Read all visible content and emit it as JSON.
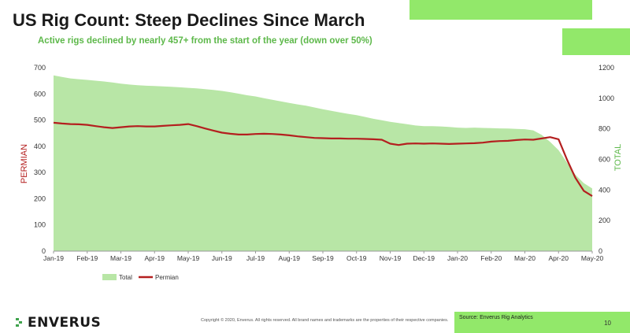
{
  "title": "US Rig Count: Steep Declines Since March",
  "subtitle": "Active rigs declined by nearly 457+ from the start of the year (down over 50%)",
  "colors": {
    "total_fill": "#b8e6a6",
    "permian_line": "#b41f1f",
    "accent": "#92e86a",
    "subtitle": "#5db84a"
  },
  "chart_data": {
    "type": "area",
    "x_ticks": [
      "Jan-19",
      "Feb-19",
      "Mar-19",
      "Apr-19",
      "May-19",
      "Jun-19",
      "Jul-19",
      "Aug-19",
      "Sep-19",
      "Oct-19",
      "Nov-19",
      "Dec-19",
      "Jan-20",
      "Feb-20",
      "Mar-20",
      "Apr-20",
      "May-20"
    ],
    "left_axis": {
      "label": "PERMIAN",
      "min": 0,
      "max": 700,
      "ticks": [
        0,
        100,
        200,
        300,
        400,
        500,
        600,
        700
      ]
    },
    "right_axis": {
      "label": "TOTAL",
      "min": 0,
      "max": 1200,
      "ticks": [
        0,
        200,
        400,
        600,
        800,
        1000,
        1200
      ]
    },
    "x": [
      0,
      0.25,
      0.5,
      0.75,
      1,
      1.25,
      1.5,
      1.75,
      2,
      2.25,
      2.5,
      2.75,
      3,
      3.25,
      3.5,
      3.75,
      4,
      4.25,
      4.5,
      4.75,
      5,
      5.25,
      5.5,
      5.75,
      6,
      6.25,
      6.5,
      6.75,
      7,
      7.25,
      7.5,
      7.75,
      8,
      8.25,
      8.5,
      8.75,
      9,
      9.25,
      9.5,
      9.75,
      10,
      10.25,
      10.5,
      10.75,
      11,
      11.25,
      11.5,
      11.75,
      12,
      12.25,
      12.5,
      12.75,
      13,
      13.25,
      13.5,
      13.75,
      14,
      14.25,
      14.5,
      14.75,
      15,
      15.25,
      15.5,
      15.75,
      16
    ],
    "series": [
      {
        "name": "Total",
        "axis": "right",
        "type": "area",
        "values": [
          1150,
          1140,
          1130,
          1125,
          1120,
          1115,
          1110,
          1103,
          1096,
          1090,
          1085,
          1082,
          1080,
          1078,
          1075,
          1072,
          1068,
          1065,
          1060,
          1055,
          1048,
          1040,
          1030,
          1020,
          1012,
          1000,
          990,
          980,
          970,
          960,
          952,
          940,
          928,
          918,
          908,
          898,
          890,
          878,
          866,
          856,
          846,
          838,
          830,
          822,
          818,
          818,
          816,
          812,
          808,
          806,
          808,
          806,
          805,
          803,
          802,
          800,
          798,
          790,
          760,
          715,
          660,
          580,
          500,
          445,
          410
        ]
      },
      {
        "name": "Permian",
        "axis": "left",
        "type": "line",
        "values": [
          490,
          487,
          485,
          484,
          482,
          477,
          473,
          470,
          473,
          476,
          477,
          476,
          476,
          478,
          480,
          482,
          485,
          477,
          468,
          460,
          452,
          448,
          445,
          445,
          447,
          448,
          447,
          445,
          442,
          438,
          435,
          432,
          431,
          430,
          430,
          429,
          429,
          428,
          427,
          425,
          410,
          405,
          410,
          411,
          410,
          411,
          410,
          409,
          410,
          411,
          412,
          414,
          418,
          420,
          421,
          424,
          426,
          425,
          430,
          435,
          427,
          350,
          280,
          230,
          210
        ]
      }
    ],
    "legend": [
      "Total",
      "Permian"
    ],
    "legend_position": "bottom-left"
  },
  "footer": {
    "logo": "ENVERUS",
    "copyright": "Copyright © 2020, Enverus. All rights reserved. All brand names and trademarks are the properties of their respective companies.",
    "source": "Source: Enverus Rig Analytics",
    "page_number": "10"
  }
}
